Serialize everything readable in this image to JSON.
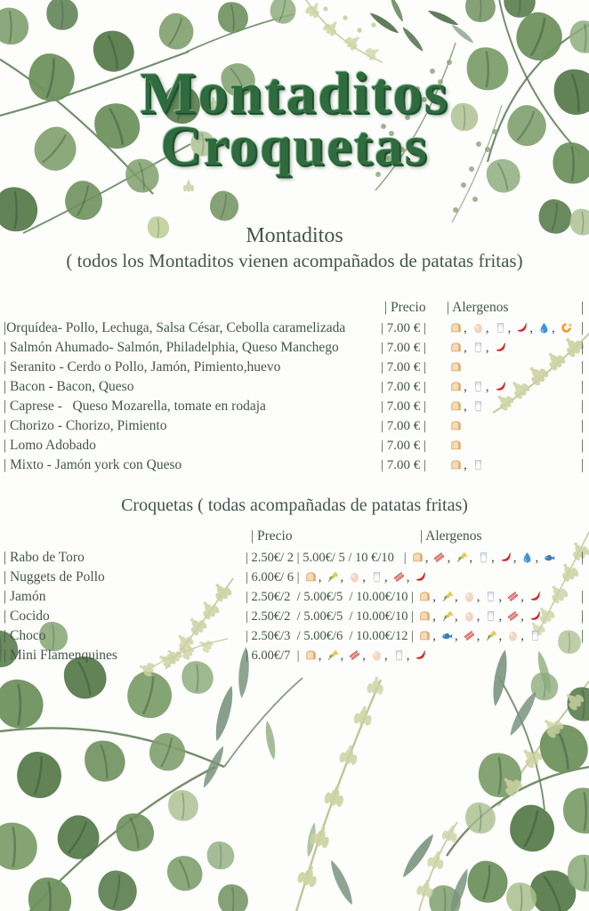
{
  "title": {
    "line1": "Montaditos",
    "line2": "Croquetas"
  },
  "colors": {
    "title_green": "#2f6b3e",
    "text": "#445549",
    "leaf_green": "#6f925f",
    "pale_sprig": "#cdd2a2"
  },
  "allergen_icons": {
    "bread": "🍞",
    "egg": "🥚",
    "milk": "🥛",
    "chili": "🌶️",
    "water-drop": "💧",
    "shrimp": "🦐",
    "wheat": "🌾",
    "bacon": "🥓",
    "fish": "🐟"
  },
  "montaditos": {
    "heading": "Montaditos",
    "subheading": "( todos los Montaditos vienen acompañados de patatas fritas)",
    "col_price": "| Precio",
    "col_allergens": "| Alergenos",
    "header_end_bar": "|",
    "rows": [
      {
        "name": "|Orquídea- Pollo, Lechuga, Salsa César, Cebolla caramelizada",
        "price": "| 7.00 € |",
        "allergens": [
          "bread",
          "egg",
          "milk",
          "chili",
          "water-drop",
          "shrimp"
        ],
        "end_bar": "|"
      },
      {
        "name": "| Salmón Ahumado- Salmón, Philadelphia, Queso Manchego",
        "price": "| 7.00 € |",
        "allergens": [
          "bread",
          "milk",
          "chili"
        ],
        "end_bar": "|"
      },
      {
        "name": "| Seranito - Cerdo o Pollo, Jamón, Pimiento,huevo",
        "price": "| 7.00 € |",
        "allergens": [
          "bread"
        ],
        "end_bar": "|"
      },
      {
        "name": "| Bacon - Bacon, Queso",
        "price": "| 7.00 € |",
        "allergens": [
          "bread",
          "milk",
          "chili"
        ],
        "end_bar": "|"
      },
      {
        "name": "| Caprese -   Queso Mozarella, tomate en rodaja",
        "price": "| 7.00 € |",
        "allergens": [
          "bread",
          "milk"
        ],
        "end_bar": "|"
      },
      {
        "name": "| Chorizo - Chorizo, Pimiento",
        "price": "| 7.00 € |",
        "allergens": [
          "bread"
        ],
        "end_bar": "|"
      },
      {
        "name": "| Lomo Adobado",
        "price": "| 7.00 € |",
        "allergens": [
          "bread"
        ],
        "end_bar": "|"
      },
      {
        "name": "| Mixto - Jamón york con Queso",
        "price": "| 7.00 € |",
        "allergens": [
          "bread",
          "milk"
        ],
        "end_bar": "|"
      }
    ]
  },
  "croquetas": {
    "heading": "Croquetas ( todas acompañadas de patatas fritas)",
    "col_price": "| Precio",
    "col_allergens": "| Alergenos",
    "header_end_bar": "",
    "rows": [
      {
        "name": "| Rabo de Toro",
        "price": "| 2.50€/ 2 | 5.00€/ 5 / 10 €/10   |",
        "allergens": [
          "bread",
          "bacon",
          "wheat",
          "milk",
          "chili",
          "water-drop",
          "fish"
        ],
        "end_bar": "|"
      },
      {
        "name": "| Nuggets de Pollo",
        "price": "| 6.00€/ 6 |",
        "allergens": [
          "bread",
          "wheat",
          "egg",
          "milk",
          "bacon",
          "chili"
        ],
        "end_bar": ""
      },
      {
        "name": "| Jamón",
        "price": "| 2.50€/2  / 5.00€/5  / 10.00€/10 |",
        "allergens": [
          "bread",
          "wheat",
          "egg",
          "milk",
          "bacon",
          "chili"
        ],
        "end_bar": "|"
      },
      {
        "name": "| Cocido",
        "price": "| 2.50€/2  / 5.00€/5  / 10.00€/10 |",
        "allergens": [
          "bread",
          "wheat",
          "egg",
          "milk",
          "bacon",
          "chili"
        ],
        "end_bar": "|"
      },
      {
        "name": "| Choco",
        "price": "| 2.50€/3  / 5.00€/6  / 10.00€/12 |",
        "allergens": [
          "bread",
          "fish",
          "bacon",
          "wheat",
          "egg",
          "milk"
        ],
        "end_bar": "|"
      },
      {
        "name": "| Mini Flamenquines",
        "price": "| 6.00€/7  |",
        "allergens": [
          "bread",
          "wheat",
          "bacon",
          "egg",
          "milk",
          "chili"
        ],
        "end_bar": ""
      }
    ]
  }
}
